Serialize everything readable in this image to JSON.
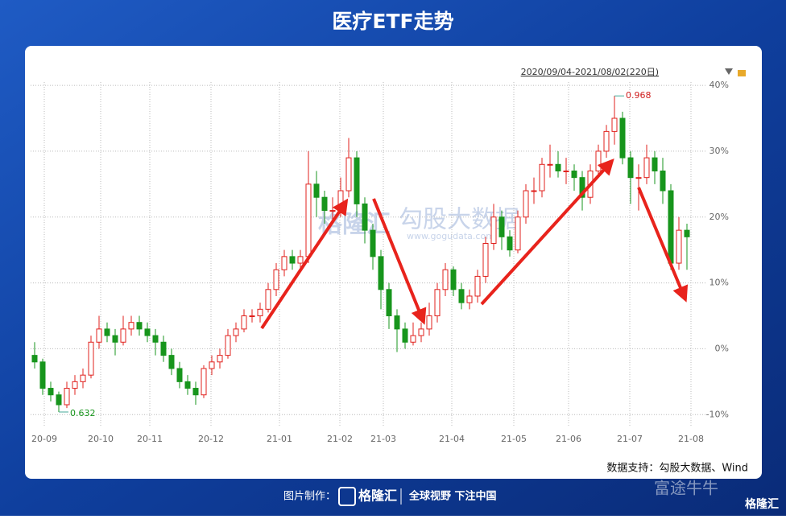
{
  "header": {
    "title": "医疗ETF走势"
  },
  "chart_data": {
    "type": "candlestick",
    "range_label": "2020/09/04-2021/08/02(220日)",
    "candles": [
      [
        -1,
        1,
        -3,
        -2
      ],
      [
        -2,
        -1.5,
        -7,
        -6
      ],
      [
        -6,
        -5,
        -8,
        -7
      ],
      [
        -7,
        -6.5,
        -9.6,
        -8.5
      ],
      [
        -8.5,
        -5,
        -9,
        -6
      ],
      [
        -6,
        -4,
        -7,
        -5
      ],
      [
        -5,
        -3,
        -6,
        -4
      ],
      [
        -4,
        2,
        -4.5,
        1
      ],
      [
        1,
        5,
        0,
        3
      ],
      [
        3,
        4,
        1,
        2
      ],
      [
        2,
        3,
        -1,
        1
      ],
      [
        1,
        5,
        0.5,
        3
      ],
      [
        3,
        5,
        2,
        4
      ],
      [
        4,
        5,
        2,
        3
      ],
      [
        3,
        4,
        1,
        2
      ],
      [
        2,
        3,
        -1,
        1
      ],
      [
        1,
        2,
        -2,
        -1
      ],
      [
        -1,
        0,
        -4,
        -3
      ],
      [
        -3,
        -2,
        -6,
        -5
      ],
      [
        -5,
        -4,
        -7,
        -6
      ],
      [
        -6,
        -5,
        -8.5,
        -7
      ],
      [
        -7,
        -2.5,
        -7.5,
        -3
      ],
      [
        -3,
        -1,
        -4,
        -2
      ],
      [
        -2,
        0,
        -3,
        -1
      ],
      [
        -1,
        3,
        -1.5,
        2
      ],
      [
        2,
        4,
        1,
        3
      ],
      [
        3,
        6,
        2.5,
        5
      ],
      [
        5,
        6,
        4,
        5
      ],
      [
        5,
        7,
        4,
        6
      ],
      [
        6,
        10,
        5.5,
        9
      ],
      [
        9,
        13,
        8,
        12
      ],
      [
        12,
        15,
        11,
        14
      ],
      [
        14,
        15,
        12,
        13
      ],
      [
        13,
        15,
        12,
        14
      ],
      [
        14,
        30,
        13,
        25
      ],
      [
        25,
        27,
        20,
        23
      ],
      [
        23,
        24,
        19,
        21
      ],
      [
        21,
        23,
        19,
        21
      ],
      [
        21,
        26,
        20,
        24
      ],
      [
        24,
        32,
        23,
        29
      ],
      [
        29,
        30,
        20,
        22
      ],
      [
        22,
        23,
        16,
        18
      ],
      [
        18,
        19,
        12,
        14
      ],
      [
        14,
        15,
        6,
        9
      ],
      [
        9,
        10,
        3,
        5
      ],
      [
        5,
        6,
        -0.5,
        3
      ],
      [
        3,
        4,
        0,
        1
      ],
      [
        1,
        4,
        0.5,
        2
      ],
      [
        2,
        4,
        1,
        3
      ],
      [
        3,
        7,
        2,
        5
      ],
      [
        5,
        10,
        4,
        9
      ],
      [
        9,
        13,
        8,
        12
      ],
      [
        12,
        12.5,
        8,
        9
      ],
      [
        9,
        10,
        6,
        7
      ],
      [
        7,
        9,
        6,
        8
      ],
      [
        8,
        12,
        7,
        11
      ],
      [
        11,
        17,
        10,
        16
      ],
      [
        16,
        22,
        15,
        20
      ],
      [
        20,
        21,
        15,
        17
      ],
      [
        17,
        18,
        14,
        15
      ],
      [
        15,
        21,
        14.5,
        20
      ],
      [
        20,
        25,
        19,
        24
      ],
      [
        24,
        26,
        22,
        24
      ],
      [
        24,
        29,
        23,
        28
      ],
      [
        28,
        31,
        26,
        28
      ],
      [
        28,
        30,
        26,
        27
      ],
      [
        27,
        29,
        25,
        27
      ],
      [
        27,
        28,
        24,
        26
      ],
      [
        26,
        27,
        21,
        23
      ],
      [
        23,
        28,
        22,
        27
      ],
      [
        27,
        31,
        26,
        30
      ],
      [
        30,
        34,
        29,
        33
      ],
      [
        33,
        38.4,
        31,
        35
      ],
      [
        35,
        36,
        28,
        29
      ],
      [
        29,
        30,
        22,
        26
      ],
      [
        26,
        28,
        21,
        26
      ],
      [
        26,
        31,
        25,
        29
      ],
      [
        29,
        30,
        25,
        27
      ],
      [
        27,
        29,
        22,
        24
      ],
      [
        24,
        25,
        12,
        13
      ],
      [
        13,
        20,
        12,
        18
      ],
      [
        18,
        19,
        12,
        17
      ]
    ],
    "up_color": "#e0201c",
    "down_color": "#17951c",
    "max_label": "0.968",
    "min_label": "0.632",
    "xlim": [
      -0.5,
      81.5
    ],
    "xticks": [
      {
        "value": 1.2,
        "label": "20-09"
      },
      {
        "value": 8.2,
        "label": "20-10"
      },
      {
        "value": 14.3,
        "label": "20-11"
      },
      {
        "value": 21.9,
        "label": "20-12"
      },
      {
        "value": 30.4,
        "label": "21-01"
      },
      {
        "value": 37.9,
        "label": "21-02"
      },
      {
        "value": 43.3,
        "label": "21-03"
      },
      {
        "value": 51.8,
        "label": "21-04"
      },
      {
        "value": 59.5,
        "label": "21-05"
      },
      {
        "value": 66.3,
        "label": "21-06"
      },
      {
        "value": 73.9,
        "label": "21-07"
      },
      {
        "value": 81.5,
        "label": "21-08"
      }
    ],
    "ylim": [
      -11.8,
      40.5
    ],
    "yticks": [
      {
        "value": -10,
        "label": "-10%"
      },
      {
        "value": 0,
        "label": "0%"
      },
      {
        "value": 10,
        "label": "10%"
      },
      {
        "value": 20,
        "label": "20%"
      },
      {
        "value": 30,
        "label": "30%"
      },
      {
        "value": 40,
        "label": "40%"
      }
    ],
    "grid": true
  },
  "source": "数据支持：勾股大数据、Wind",
  "watermarks": [
    "格隆汇",
    "勾股大数据",
    "www.gogudata.com"
  ],
  "footer": {
    "made_by": "图片制作：",
    "brand": "格隆汇",
    "slogan": "全球视野 下注中国",
    "corner": "富途牛牛"
  }
}
